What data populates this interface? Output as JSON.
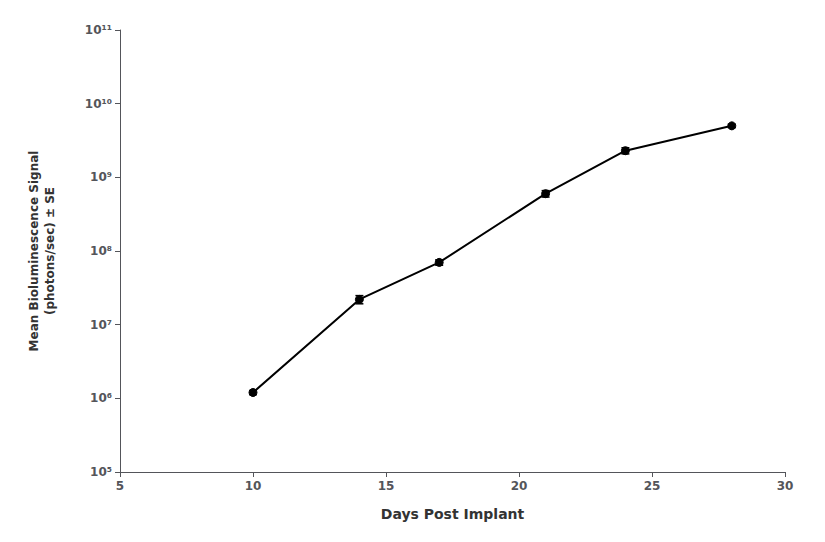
{
  "chart_data": {
    "type": "line",
    "xlabel": "Days Post Implant",
    "ylabel": "Mean Bioluminescence Signal\n(photons/sec) ± SE",
    "x": [
      10,
      14,
      17,
      21,
      24,
      28
    ],
    "values": [
      1200000.0,
      22000000.0,
      70000000.0,
      600000000.0,
      2300000000.0,
      5000000000.0
    ],
    "error_lower": [
      80000.0,
      2800000.0,
      6000000.0,
      60000000.0,
      220000000.0,
      280000000.0
    ],
    "error_upper": [
      80000.0,
      2800000.0,
      6000000.0,
      60000000.0,
      220000000.0,
      280000000.0
    ],
    "color": "#000000",
    "marker": "circle",
    "log": "y",
    "xlim": [
      5,
      30
    ],
    "xticks": [
      5,
      10,
      15,
      20,
      25,
      30
    ],
    "ylim": [
      100000.0,
      100000000000.0
    ],
    "yticks": [
      {
        "value": 100000.0,
        "label": "10⁵"
      },
      {
        "value": 1000000.0,
        "label": "10⁶"
      },
      {
        "value": 10000000.0,
        "label": "10⁷"
      },
      {
        "value": 100000000.0,
        "label": "10⁸"
      },
      {
        "value": 1000000000.0,
        "label": "10⁹"
      },
      {
        "value": 10000000000.0,
        "label": "10¹⁰"
      },
      {
        "value": 100000000000.0,
        "label": "10¹¹"
      }
    ],
    "grid": false
  }
}
